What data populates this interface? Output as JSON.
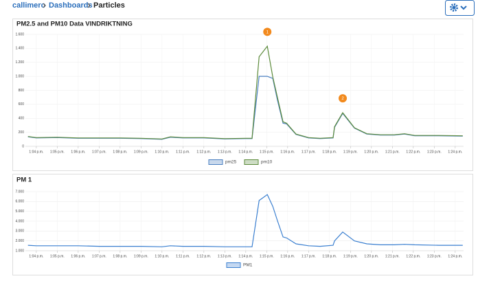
{
  "breadcrumb": {
    "items": [
      "callimero",
      "Dashboards",
      "Particles"
    ]
  },
  "chart_data": [
    {
      "type": "line",
      "title": "PM2.5 and PM10 Data VINDRIKTNING",
      "x": [
        3.6,
        4,
        5,
        6,
        7,
        8,
        9,
        10,
        10.4,
        11,
        12,
        13,
        14,
        14.3,
        14.64,
        15.03,
        15.29,
        15.52,
        15.78,
        15.95,
        16.4,
        17,
        17.55,
        18.17,
        18.24,
        18.63,
        19.19,
        19.78,
        20.43,
        21.09,
        21.58,
        22.07,
        23.2,
        24.36
      ],
      "series": [
        {
          "name": "pm25",
          "color": "#4a7fc0",
          "values": [
            135,
            120,
            125,
            115,
            115,
            115,
            110,
            100,
            130,
            120,
            120,
            105,
            110,
            110,
            1000,
            1000,
            970,
            650,
            330,
            320,
            170,
            120,
            110,
            120,
            270,
            470,
            260,
            175,
            160,
            160,
            175,
            150,
            150,
            145
          ]
        },
        {
          "name": "pm10",
          "color": "#5b8a3a",
          "values": [
            140,
            125,
            130,
            120,
            120,
            120,
            115,
            105,
            135,
            125,
            125,
            110,
            115,
            115,
            1280,
            1430,
            990,
            690,
            350,
            330,
            175,
            125,
            115,
            125,
            280,
            480,
            265,
            180,
            165,
            165,
            180,
            155,
            155,
            150
          ]
        }
      ],
      "annotations": [
        {
          "text": "1",
          "x": 15.03,
          "y": 1430
        },
        {
          "text": "2",
          "x": 18.63,
          "y": 480
        }
      ],
      "xlim": [
        3.48,
        24.4
      ],
      "xticks": [
        {
          "value": 4,
          "label": "1:04 p.m."
        },
        {
          "value": 5,
          "label": "1:05 p.m."
        },
        {
          "value": 6,
          "label": "1:06 p.m."
        },
        {
          "value": 7,
          "label": "1:07 p.m."
        },
        {
          "value": 8,
          "label": "1:08 p.m."
        },
        {
          "value": 9,
          "label": "1:09 p.m."
        },
        {
          "value": 10,
          "label": "1:10 p.m."
        },
        {
          "value": 11,
          "label": "1:11 p.m."
        },
        {
          "value": 12,
          "label": "1:12 p.m."
        },
        {
          "value": 13,
          "label": "1:13 p.m."
        },
        {
          "value": 14,
          "label": "1:14 p.m."
        },
        {
          "value": 15,
          "label": "1:15 p.m."
        },
        {
          "value": 16,
          "label": "1:16 p.m."
        },
        {
          "value": 17,
          "label": "1:17 p.m."
        },
        {
          "value": 18,
          "label": "1:18 p.m."
        },
        {
          "value": 19,
          "label": "1:19 p.m."
        },
        {
          "value": 20,
          "label": "1:20 p.m."
        },
        {
          "value": 21,
          "label": "1:21 p.m."
        },
        {
          "value": 22,
          "label": "1:22 p.m."
        },
        {
          "value": 23,
          "label": "1:23 p.m."
        },
        {
          "value": 24,
          "label": "1:24 p.m."
        }
      ],
      "ylim": [
        0,
        1600
      ],
      "yticks": [
        0,
        200,
        400,
        600,
        800,
        {
          "value": 1000,
          "label": "1.000"
        },
        {
          "value": 1200,
          "label": "1.200"
        },
        {
          "value": 1400,
          "label": "1.400"
        },
        {
          "value": 1600,
          "label": "1.600"
        }
      ],
      "grid": true
    },
    {
      "type": "line",
      "title": "PM 1",
      "x": [
        3.6,
        4,
        5,
        6,
        7,
        8,
        9,
        10,
        10.4,
        11,
        12,
        13,
        14,
        14.3,
        14.64,
        15.03,
        15.29,
        15.52,
        15.78,
        15.95,
        16.4,
        17,
        17.55,
        18.17,
        18.24,
        18.63,
        19.19,
        19.78,
        20.43,
        21.09,
        21.58,
        22.07,
        23.2,
        24.36
      ],
      "series": [
        {
          "name": "PM1",
          "color": "#3a7fd0",
          "values": [
            1550,
            1500,
            1500,
            1500,
            1450,
            1450,
            1450,
            1400,
            1500,
            1450,
            1450,
            1400,
            1400,
            1400,
            6100,
            6700,
            5500,
            4000,
            2400,
            2300,
            1700,
            1500,
            1450,
            1550,
            2000,
            2900,
            2000,
            1700,
            1600,
            1600,
            1650,
            1600,
            1550,
            1550
          ]
        }
      ],
      "xlim": [
        3.48,
        24.4
      ],
      "xticks": [
        {
          "value": 4,
          "label": "1:04 p.m."
        },
        {
          "value": 5,
          "label": "1:05 p.m."
        },
        {
          "value": 6,
          "label": "1:06 p.m."
        },
        {
          "value": 7,
          "label": "1:07 p.m."
        },
        {
          "value": 8,
          "label": "1:08 p.m."
        },
        {
          "value": 9,
          "label": "1:09 p.m."
        },
        {
          "value": 10,
          "label": "1:10 p.m."
        },
        {
          "value": 11,
          "label": "1:11 p.m."
        },
        {
          "value": 12,
          "label": "1:12 p.m."
        },
        {
          "value": 13,
          "label": "1:13 p.m."
        },
        {
          "value": 14,
          "label": "1:14 p.m."
        },
        {
          "value": 15,
          "label": "1:15 p.m."
        },
        {
          "value": 16,
          "label": "1:16 p.m."
        },
        {
          "value": 17,
          "label": "1:17 p.m."
        },
        {
          "value": 18,
          "label": "1:18 p.m."
        },
        {
          "value": 19,
          "label": "1:19 p.m."
        },
        {
          "value": 20,
          "label": "1:20 p.m."
        },
        {
          "value": 21,
          "label": "1:21 p.m."
        },
        {
          "value": 22,
          "label": "1:22 p.m."
        },
        {
          "value": 23,
          "label": "1:23 p.m."
        },
        {
          "value": 24,
          "label": "1:24 p.m."
        }
      ],
      "ylim": [
        1000,
        7000
      ],
      "yticks": [
        {
          "value": 1000,
          "label": "1.000"
        },
        {
          "value": 2000,
          "label": "2.000"
        },
        {
          "value": 3000,
          "label": "3.000"
        },
        {
          "value": 4000,
          "label": "4.000"
        },
        {
          "value": 5000,
          "label": "5.000"
        },
        {
          "value": 6000,
          "label": "6.000"
        },
        {
          "value": 7000,
          "label": "7.000"
        }
      ],
      "grid": true
    }
  ]
}
